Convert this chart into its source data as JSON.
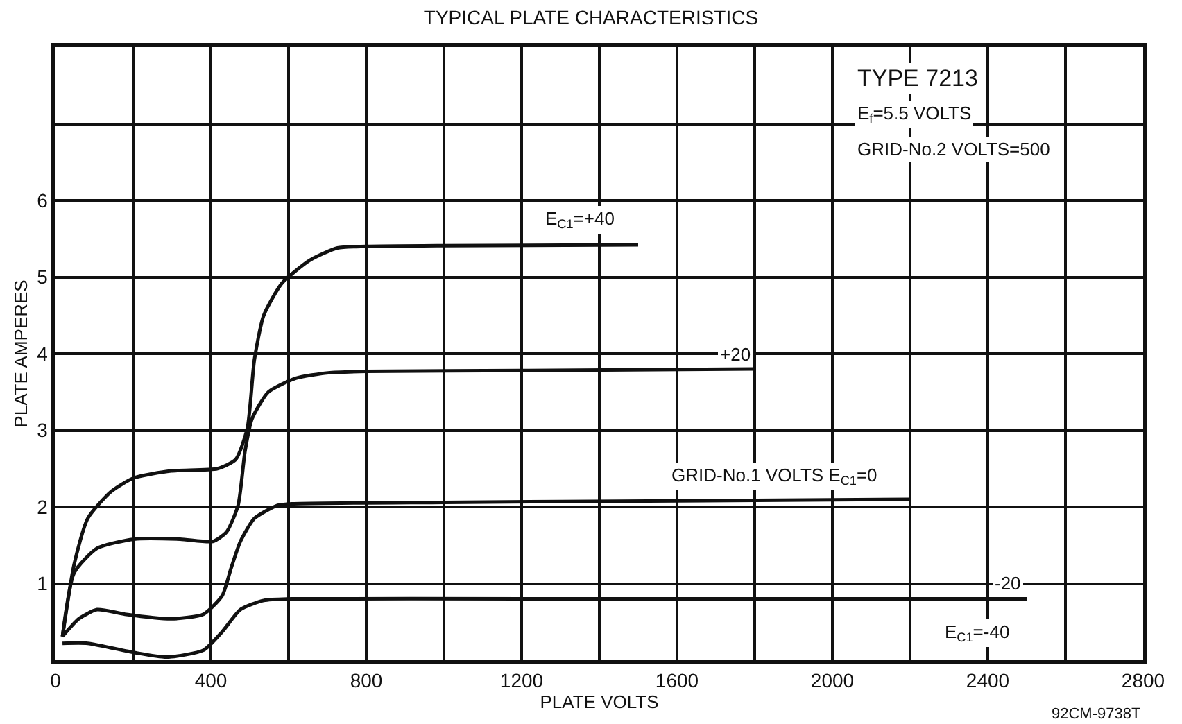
{
  "chart_data": {
    "type": "line",
    "title": "TYPICAL PLATE CHARACTERISTICS",
    "xlabel": "PLATE VOLTS",
    "ylabel": "PLATE AMPERES",
    "xlim": [
      0,
      2800
    ],
    "ylim": [
      0,
      8
    ],
    "xticks": [
      {
        "value": 0,
        "label": "0"
      },
      {
        "value": 200,
        "label": null
      },
      400,
      {
        "value": 600,
        "label": null
      },
      800,
      {
        "value": 1000,
        "label": null
      },
      1200,
      {
        "value": 1400,
        "label": null
      },
      1600,
      {
        "value": 1800,
        "label": null
      },
      2000,
      {
        "value": 2200,
        "label": null
      },
      2400,
      {
        "value": 2600,
        "label": null
      },
      2800
    ],
    "yticks": [
      {
        "value": 0,
        "label": null
      },
      1,
      2,
      3,
      4,
      5,
      6,
      {
        "value": 7,
        "label": null
      },
      {
        "value": 8,
        "label": null
      }
    ],
    "grid": true,
    "marker": "none",
    "line_style": "solid",
    "series": [
      {
        "color": "#111111",
        "x": [
          18,
          48,
          83,
          143,
          202,
          298,
          417,
          464,
          494,
          512,
          536,
          583,
          655,
          726,
          800,
          1000,
          1500
        ],
        "values": [
          0.31,
          1.25,
          1.85,
          2.2,
          2.38,
          2.47,
          2.5,
          2.62,
          3.03,
          3.92,
          4.5,
          4.92,
          5.22,
          5.38,
          5.4,
          5.41,
          5.42
        ]
      },
      {
        "color": "#111111",
        "x": [
          18,
          48,
          107,
          202,
          321,
          405,
          440,
          470,
          488,
          506,
          548,
          619,
          702,
          800,
          1200,
          1800
        ],
        "values": [
          0.31,
          1.14,
          1.46,
          1.58,
          1.58,
          1.55,
          1.67,
          2.02,
          2.73,
          3.15,
          3.5,
          3.68,
          3.75,
          3.77,
          3.78,
          3.8
        ]
      },
      {
        "color": "#111111",
        "x": [
          18,
          60,
          107,
          179,
          298,
          381,
          429,
          452,
          476,
          512,
          571,
          607,
          1000,
          1600,
          2200
        ],
        "values": [
          0.31,
          0.54,
          0.66,
          0.6,
          0.54,
          0.6,
          0.84,
          1.2,
          1.55,
          1.85,
          2.02,
          2.04,
          2.06,
          2.08,
          2.1
        ]
      },
      {
        "color": "#111111",
        "x": [
          18,
          83,
          202,
          286,
          381,
          429,
          476,
          536,
          607,
          1200,
          1800,
          2500
        ],
        "values": [
          0.22,
          0.22,
          0.1,
          0.04,
          0.13,
          0.37,
          0.66,
          0.78,
          0.8,
          0.8,
          0.8,
          0.8
        ]
      }
    ],
    "annotations": [
      "E$_{C1}$=+40",
      "+20",
      "GRID-No.1 VOLTS E$_{C1}$=0",
      "-20",
      "E$_{C1}$=-40",
      "TYPE 7213",
      "E$_{f}$=5.5 VOLTS",
      "GRID-No.2 VOLTS=500",
      "92CM-9738T"
    ]
  }
}
